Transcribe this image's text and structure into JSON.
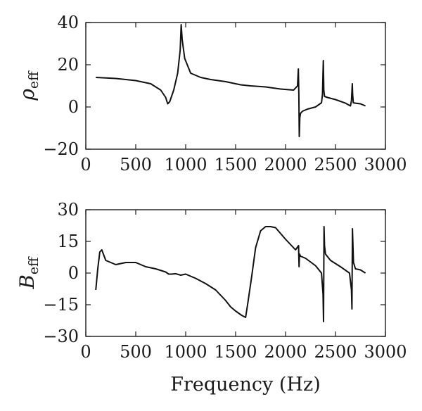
{
  "chart_data": [
    {
      "type": "line",
      "ylabel_main": "ρ",
      "ylabel_sub": "eff",
      "xlabel": "",
      "xlim": [
        0,
        3000
      ],
      "ylim": [
        -20,
        40
      ],
      "xticks": [
        "0",
        "500",
        "1000",
        "1500",
        "2000",
        "2500",
        "3000"
      ],
      "yticks": [
        "−20",
        "0",
        "20",
        "40"
      ],
      "xtick_values": [
        0,
        500,
        1000,
        1500,
        2000,
        2500,
        3000
      ],
      "ytick_values": [
        -20,
        0,
        20,
        40
      ],
      "grid": false,
      "color": "#111111",
      "x": [
        100,
        300,
        500,
        650,
        750,
        800,
        820,
        840,
        880,
        920,
        945,
        955,
        965,
        990,
        1050,
        1150,
        1250,
        1400,
        1550,
        1650,
        1800,
        1950,
        2080,
        2120,
        2128,
        2133,
        2137,
        2140,
        2143,
        2150,
        2170,
        2220,
        2300,
        2360,
        2370,
        2378,
        2383,
        2390,
        2420,
        2500,
        2600,
        2650,
        2660,
        2668,
        2672,
        2678,
        2700,
        2750,
        2800
      ],
      "y": [
        14,
        13.5,
        12.5,
        11,
        8,
        4.5,
        1.5,
        2.5,
        8,
        16,
        27,
        39,
        32,
        23,
        16,
        14,
        13,
        12,
        10.5,
        10,
        9.5,
        8.5,
        8,
        10,
        18,
        6,
        -14,
        -10,
        -5,
        -3,
        -2,
        -1,
        0,
        2,
        6,
        22,
        8,
        5,
        4.5,
        3.5,
        1.8,
        0.5,
        3,
        11,
        6,
        2,
        1.8,
        1.5,
        0.5
      ]
    },
    {
      "type": "line",
      "ylabel_main": "B",
      "ylabel_sub": "eff",
      "xlabel": "Frequency (Hz)",
      "xlim": [
        0,
        3000
      ],
      "ylim": [
        -30,
        30
      ],
      "xticks": [
        "0",
        "500",
        "1000",
        "1500",
        "2000",
        "2500",
        "3000"
      ],
      "yticks": [
        "−30",
        "−15",
        "0",
        "15",
        "30"
      ],
      "xtick_values": [
        0,
        500,
        1000,
        1500,
        2000,
        2500,
        3000
      ],
      "ytick_values": [
        -30,
        -15,
        0,
        15,
        30
      ],
      "grid": false,
      "color": "#111111",
      "x": [
        100,
        120,
        140,
        160,
        200,
        300,
        400,
        500,
        600,
        700,
        800,
        830,
        860,
        900,
        950,
        1000,
        1100,
        1200,
        1300,
        1400,
        1450,
        1500,
        1560,
        1600,
        1620,
        1660,
        1700,
        1750,
        1800,
        1850,
        1900,
        2000,
        2100,
        2130,
        2135,
        2140,
        2150,
        2200,
        2300,
        2360,
        2375,
        2380,
        2385,
        2390,
        2400,
        2450,
        2550,
        2640,
        2660,
        2665,
        2670,
        2680,
        2700,
        2750,
        2800
      ],
      "y": [
        -8,
        2,
        10,
        11,
        6,
        4,
        5,
        5,
        3,
        2,
        0.5,
        -0.5,
        -0.5,
        -0.3,
        -1,
        -0.5,
        -2.5,
        -5,
        -8,
        -13,
        -16,
        -18,
        -20,
        -21,
        -15,
        -2,
        12,
        20,
        22,
        22,
        21.5,
        16,
        11,
        13,
        3,
        9,
        8,
        7,
        3.5,
        0,
        -10,
        -23,
        22,
        13,
        9,
        6,
        3,
        0,
        -8,
        -17,
        21,
        5,
        2,
        1.5,
        0
      ]
    }
  ]
}
